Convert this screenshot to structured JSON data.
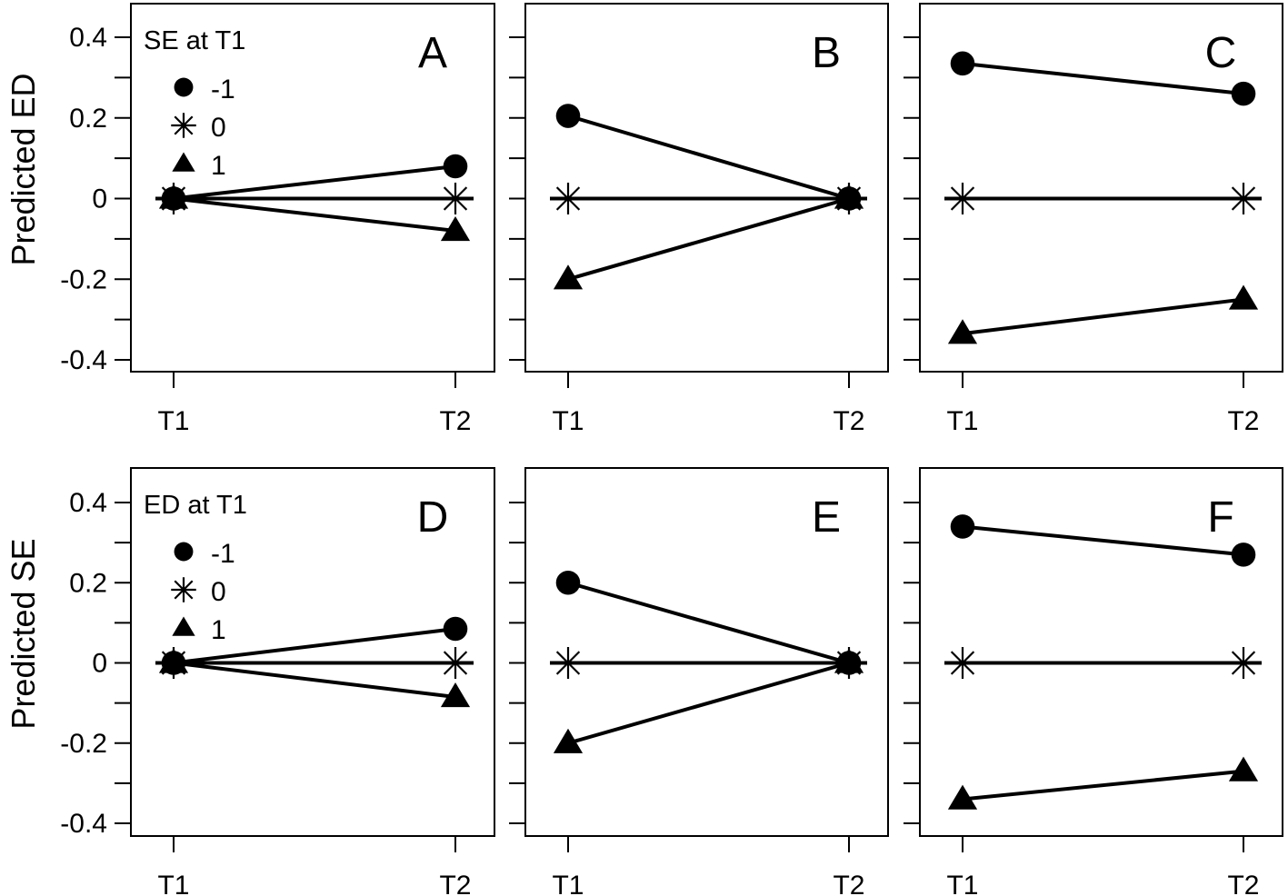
{
  "chart_data": [
    {
      "type": "line",
      "panel_label": "A",
      "x": [
        "T1",
        "T2"
      ],
      "ylabel": "Predicted ED",
      "yticks": [
        "0.4",
        "0.2",
        "0",
        "-0.2",
        "-0.4"
      ],
      "ylim": [
        -0.42,
        0.47
      ],
      "legend": {
        "title": "SE at T1",
        "placement": "top-left"
      },
      "series": [
        {
          "name": "-1",
          "marker": "circle",
          "values": [
            0,
            0.08
          ]
        },
        {
          "name": "0",
          "marker": "asterisk",
          "values": [
            0,
            0
          ]
        },
        {
          "name": "1",
          "marker": "triangle",
          "values": [
            0,
            -0.08
          ]
        }
      ]
    },
    {
      "type": "line",
      "panel_label": "B",
      "x": [
        "T1",
        "T2"
      ],
      "ylim": [
        -0.42,
        0.47
      ],
      "series": [
        {
          "name": "-1",
          "marker": "circle",
          "values": [
            0.205,
            0
          ]
        },
        {
          "name": "0",
          "marker": "asterisk",
          "values": [
            0,
            0
          ]
        },
        {
          "name": "1",
          "marker": "triangle",
          "values": [
            -0.2,
            0
          ]
        }
      ]
    },
    {
      "type": "line",
      "panel_label": "C",
      "x": [
        "T1",
        "T2"
      ],
      "ylim": [
        -0.42,
        0.47
      ],
      "series": [
        {
          "name": "-1",
          "marker": "circle",
          "values": [
            0.335,
            0.26
          ]
        },
        {
          "name": "0",
          "marker": "asterisk",
          "values": [
            0,
            0
          ]
        },
        {
          "name": "1",
          "marker": "triangle",
          "values": [
            -0.335,
            -0.25
          ]
        }
      ]
    },
    {
      "type": "line",
      "panel_label": "D",
      "x": [
        "T1",
        "T2"
      ],
      "ylabel": "Predicted SE",
      "yticks": [
        "0.4",
        "0.2",
        "0",
        "-0.2",
        "-0.4"
      ],
      "ylim": [
        -0.42,
        0.47
      ],
      "legend": {
        "title": "ED at T1",
        "placement": "top-left"
      },
      "series": [
        {
          "name": "-1",
          "marker": "circle",
          "values": [
            0,
            0.085
          ]
        },
        {
          "name": "0",
          "marker": "asterisk",
          "values": [
            0,
            0
          ]
        },
        {
          "name": "1",
          "marker": "triangle",
          "values": [
            0,
            -0.085
          ]
        }
      ]
    },
    {
      "type": "line",
      "panel_label": "E",
      "x": [
        "T1",
        "T2"
      ],
      "ylim": [
        -0.42,
        0.47
      ],
      "series": [
        {
          "name": "-1",
          "marker": "circle",
          "values": [
            0.2,
            0
          ]
        },
        {
          "name": "0",
          "marker": "asterisk",
          "values": [
            0,
            0
          ]
        },
        {
          "name": "1",
          "marker": "triangle",
          "values": [
            -0.2,
            0
          ]
        }
      ]
    },
    {
      "type": "line",
      "panel_label": "F",
      "x": [
        "T1",
        "T2"
      ],
      "ylim": [
        -0.42,
        0.47
      ],
      "series": [
        {
          "name": "-1",
          "marker": "circle",
          "values": [
            0.34,
            0.27
          ]
        },
        {
          "name": "0",
          "marker": "asterisk",
          "values": [
            0,
            0
          ]
        },
        {
          "name": "1",
          "marker": "triangle",
          "values": [
            -0.34,
            -0.27
          ]
        }
      ]
    }
  ]
}
